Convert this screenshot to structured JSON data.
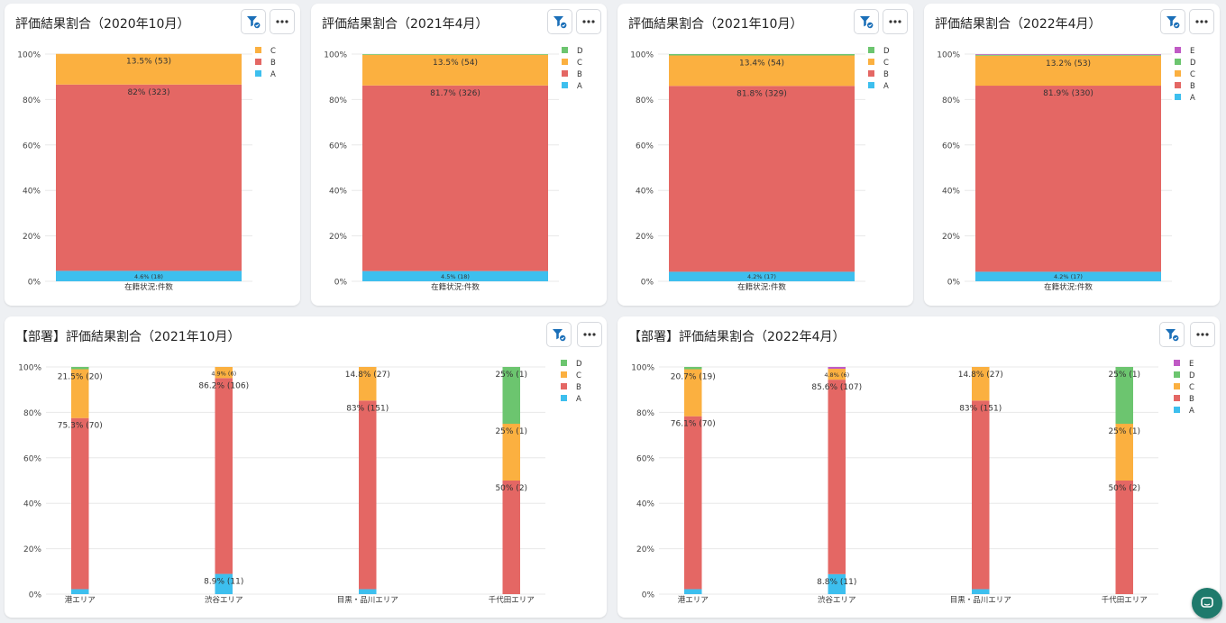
{
  "toolbar_icons": {
    "filter": "filter-check-icon",
    "more": "more-horizontal-icon"
  },
  "colors": {
    "A": "#3dbfee",
    "B": "#e46764",
    "C": "#fbb040",
    "D": "#6cc56f",
    "E": "#c05ac5"
  },
  "cards": [
    {
      "title": "評価結果割合（2020年10月）",
      "chart_data": {
        "type": "bar",
        "stacked": true,
        "stack_order": [
          "A",
          "B",
          "C"
        ],
        "legend": [
          "C",
          "B",
          "A"
        ],
        "legend_position": "right",
        "ylim": [
          0,
          100
        ],
        "yticks": [
          "0%",
          "20%",
          "40%",
          "60%",
          "80%",
          "100%"
        ],
        "categories": [
          "在籍状況:件数"
        ],
        "bars": [
          [
            {
              "series": "A",
              "value": 4.6,
              "label": "4.6% (18)"
            },
            {
              "series": "B",
              "value": 82,
              "label": "82% (323)"
            },
            {
              "series": "C",
              "value": 13.5,
              "label": "13.5% (53)"
            }
          ]
        ]
      }
    },
    {
      "title": "評価結果割合（2021年4月）",
      "chart_data": {
        "type": "bar",
        "stacked": true,
        "stack_order": [
          "A",
          "B",
          "C",
          "D"
        ],
        "legend": [
          "D",
          "C",
          "B",
          "A"
        ],
        "legend_position": "right",
        "ylim": [
          0,
          100
        ],
        "yticks": [
          "0%",
          "20%",
          "40%",
          "60%",
          "80%",
          "100%"
        ],
        "categories": [
          "在籍状況:件数"
        ],
        "bars": [
          [
            {
              "series": "A",
              "value": 4.5,
              "label": "4.5% (18)"
            },
            {
              "series": "B",
              "value": 81.7,
              "label": "81.7% (326)"
            },
            {
              "series": "C",
              "value": 13.5,
              "label": "13.5% (54)"
            },
            {
              "series": "D",
              "value": 0.3,
              "label": ""
            }
          ]
        ]
      }
    },
    {
      "title": "評価結果割合（2021年10月）",
      "chart_data": {
        "type": "bar",
        "stacked": true,
        "stack_order": [
          "A",
          "B",
          "C",
          "D"
        ],
        "legend": [
          "D",
          "C",
          "B",
          "A"
        ],
        "legend_position": "right",
        "ylim": [
          0,
          100
        ],
        "yticks": [
          "0%",
          "20%",
          "40%",
          "60%",
          "80%",
          "100%"
        ],
        "categories": [
          "在籍状況:件数"
        ],
        "bars": [
          [
            {
              "series": "A",
              "value": 4.2,
              "label": "4.2% (17)"
            },
            {
              "series": "B",
              "value": 81.8,
              "label": "81.8% (329)"
            },
            {
              "series": "C",
              "value": 13.4,
              "label": "13.4% (54)"
            },
            {
              "series": "D",
              "value": 0.6,
              "label": ""
            }
          ]
        ]
      }
    },
    {
      "title": "評価結果割合（2022年4月）",
      "chart_data": {
        "type": "bar",
        "stacked": true,
        "stack_order": [
          "A",
          "B",
          "C",
          "D",
          "E"
        ],
        "legend": [
          "E",
          "D",
          "C",
          "B",
          "A"
        ],
        "legend_position": "right",
        "ylim": [
          0,
          100
        ],
        "yticks": [
          "0%",
          "20%",
          "40%",
          "60%",
          "80%",
          "100%"
        ],
        "categories": [
          "在籍状況:件数"
        ],
        "bars": [
          [
            {
              "series": "A",
              "value": 4.2,
              "label": "4.2% (17)"
            },
            {
              "series": "B",
              "value": 81.9,
              "label": "81.9% (330)"
            },
            {
              "series": "C",
              "value": 13.2,
              "label": "13.2% (53)"
            },
            {
              "series": "D",
              "value": 0.4,
              "label": ""
            },
            {
              "series": "E",
              "value": 0.3,
              "label": ""
            }
          ]
        ]
      }
    },
    {
      "title": "【部署】評価結果割合（2021年10月）",
      "chart_data": {
        "type": "bar",
        "stacked": true,
        "stack_order": [
          "A",
          "B",
          "C",
          "D"
        ],
        "legend": [
          "D",
          "C",
          "B",
          "A"
        ],
        "legend_position": "right",
        "ylim": [
          0,
          100
        ],
        "yticks": [
          "0%",
          "20%",
          "40%",
          "60%",
          "80%",
          "100%"
        ],
        "categories": [
          "港エリア",
          "渋谷エリア",
          "目黒・品川エリア",
          "千代田エリア"
        ],
        "bars": [
          [
            {
              "series": "A",
              "value": 2.2,
              "label": ""
            },
            {
              "series": "B",
              "value": 75.3,
              "label": "75.3% (70)"
            },
            {
              "series": "C",
              "value": 21.5,
              "label": "21.5% (20)"
            },
            {
              "series": "D",
              "value": 1.0,
              "label": ""
            }
          ],
          [
            {
              "series": "A",
              "value": 8.9,
              "label": "8.9% (11)"
            },
            {
              "series": "B",
              "value": 86.2,
              "label": "86.2% (106)"
            },
            {
              "series": "C",
              "value": 4.9,
              "label": "4.9% (6)"
            }
          ],
          [
            {
              "series": "A",
              "value": 2.2,
              "label": ""
            },
            {
              "series": "B",
              "value": 83,
              "label": "83% (151)"
            },
            {
              "series": "C",
              "value": 14.8,
              "label": "14.8% (27)"
            }
          ],
          [
            {
              "series": "B",
              "value": 50,
              "label": "50% (2)"
            },
            {
              "series": "C",
              "value": 25,
              "label": "25% (1)"
            },
            {
              "series": "D",
              "value": 25,
              "label": "25% (1)"
            }
          ]
        ]
      }
    },
    {
      "title": "【部署】評価結果割合（2022年4月）",
      "chart_data": {
        "type": "bar",
        "stacked": true,
        "stack_order": [
          "A",
          "B",
          "C",
          "D",
          "E"
        ],
        "legend": [
          "E",
          "D",
          "C",
          "B",
          "A"
        ],
        "legend_position": "right",
        "ylim": [
          0,
          100
        ],
        "yticks": [
          "0%",
          "20%",
          "40%",
          "60%",
          "80%",
          "100%"
        ],
        "categories": [
          "港エリア",
          "渋谷エリア",
          "目黒・品川エリア",
          "千代田エリア"
        ],
        "bars": [
          [
            {
              "series": "A",
              "value": 2.2,
              "label": ""
            },
            {
              "series": "B",
              "value": 76.1,
              "label": "76.1% (70)"
            },
            {
              "series": "C",
              "value": 20.7,
              "label": "20.7% (19)"
            },
            {
              "series": "D",
              "value": 1.0,
              "label": ""
            }
          ],
          [
            {
              "series": "A",
              "value": 8.8,
              "label": "8.8% (11)"
            },
            {
              "series": "B",
              "value": 85.6,
              "label": "85.6% (107)"
            },
            {
              "series": "C",
              "value": 4.8,
              "label": "4.8% (6)"
            },
            {
              "series": "E",
              "value": 0.8,
              "label": ""
            }
          ],
          [
            {
              "series": "A",
              "value": 2.2,
              "label": ""
            },
            {
              "series": "B",
              "value": 83,
              "label": "83% (151)"
            },
            {
              "series": "C",
              "value": 14.8,
              "label": "14.8% (27)"
            }
          ],
          [
            {
              "series": "B",
              "value": 50,
              "label": "50% (2)"
            },
            {
              "series": "C",
              "value": 25,
              "label": "25% (1)"
            },
            {
              "series": "D",
              "value": 25,
              "label": "25% (1)"
            }
          ]
        ]
      }
    }
  ]
}
